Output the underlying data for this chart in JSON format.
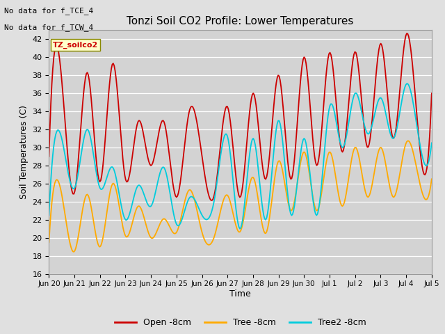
{
  "title": "Tonzi Soil CO2 Profile: Lower Temperatures",
  "ylabel": "Soil Temperatures (C)",
  "xlabel": "Time",
  "annotation_lines": [
    "No data for f_TCE_4",
    "No data for f_TCW_4"
  ],
  "inset_label": "TZ_soilco2",
  "ylim": [
    16,
    43
  ],
  "yticks": [
    16,
    18,
    20,
    22,
    24,
    26,
    28,
    30,
    32,
    34,
    36,
    38,
    40,
    42
  ],
  "xtick_labels": [
    "Jun 20",
    "Jun 21",
    "Jun 22",
    "Jun 23",
    "Jun 24",
    "Jun 25",
    "Jun 26",
    "Jun 27",
    "Jun 28",
    "Jun 29",
    "Jun 30",
    "Jul 1",
    "Jul 2",
    "Jul 3",
    "Jul 4",
    "Jul 5"
  ],
  "legend_labels": [
    "Open -8cm",
    "Tree -8cm",
    "Tree2 -8cm"
  ],
  "line_colors": [
    "#cc0000",
    "#ffaa00",
    "#00ccdd"
  ],
  "bg_color": "#e0e0e0",
  "plot_bg_color": "#d3d3d3",
  "grid_color": "#ffffff",
  "open_peaks": [
    29,
    37.5,
    25.0,
    38.3,
    26.2,
    39.3,
    26.5,
    32.9,
    28.0,
    32.9,
    24.5,
    34.0,
    29.0,
    25.0,
    34.5,
    24.5,
    36.0,
    26.5,
    38.0,
    26.5,
    40.0,
    28.0,
    40.5,
    29.5,
    40.6,
    30.0,
    41.5,
    31.0,
    42.5,
    31.0,
    36.0
  ],
  "tree_peaks": [
    19.5,
    24.8,
    18.5,
    24.8,
    19.0,
    26.0,
    20.2,
    23.5,
    20.0,
    22.1,
    20.6,
    25.3,
    20.6,
    20.3,
    24.7,
    20.7,
    26.7,
    20.5,
    28.5,
    23.0,
    29.5,
    23.0,
    29.5,
    23.5,
    30.0,
    24.5,
    30.0,
    24.5,
    30.5,
    26.5,
    26.5
  ],
  "tree2_peaks": [
    22.5,
    31.0,
    25.5,
    32.0,
    25.5,
    27.8,
    22.0,
    25.8,
    23.5,
    27.8,
    21.5,
    24.4,
    22.5,
    24.5,
    31.2,
    21.0,
    31.0,
    22.0,
    33.0,
    22.5,
    31.0,
    22.5,
    34.5,
    30.0,
    36.0,
    31.5,
    35.5,
    31.0,
    37.0,
    31.0,
    30.5
  ]
}
